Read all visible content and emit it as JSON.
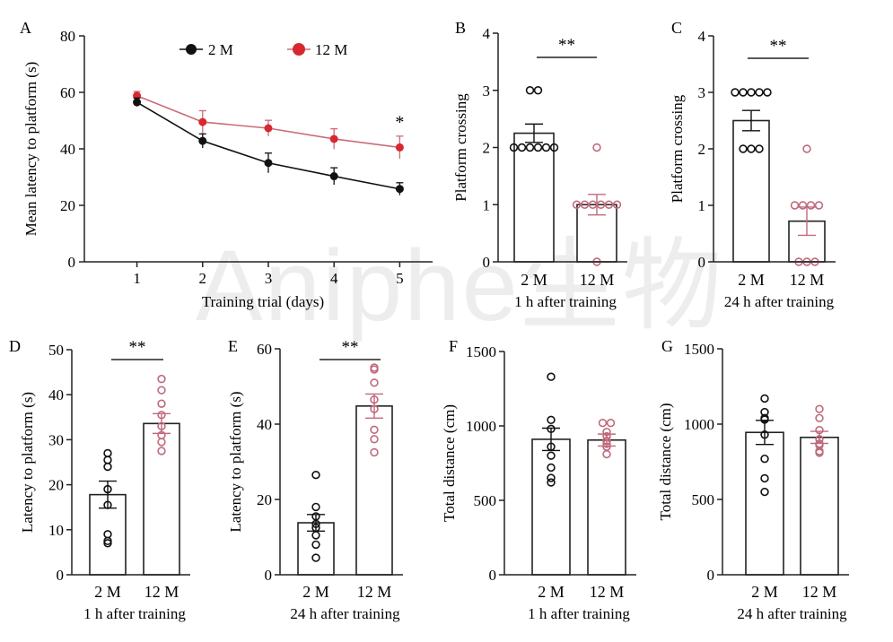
{
  "watermark": "Aniphe生物",
  "colors": {
    "dark": "#111111",
    "red": "#d8282f",
    "red_line": "#c96b7a",
    "pink_point": "#c06a7d",
    "axis": "#222222"
  },
  "chart_data": [
    {
      "panel": "A",
      "type": "line",
      "ylabel": "Mean latency to platform (s)",
      "xlabel": "Training  trial (days)",
      "xlim": [
        0.2,
        5.5
      ],
      "ylim": [
        0,
        80
      ],
      "yticks": [
        0,
        20,
        40,
        60,
        80
      ],
      "xticks": [
        1,
        2,
        3,
        4,
        5
      ],
      "legend_position": "top",
      "series": [
        {
          "name": "2 M",
          "color": "#111111",
          "x": [
            1,
            2,
            3,
            4,
            5
          ],
          "y": [
            56.5,
            42.8,
            35,
            30.3,
            25.8
          ],
          "err": [
            1.5,
            2.5,
            3.5,
            3,
            2.2
          ]
        },
        {
          "name": "12 M",
          "color": "#d8282f",
          "x": [
            1,
            2,
            3,
            4,
            5
          ],
          "y": [
            58.8,
            49.5,
            47.3,
            43.5,
            40.5
          ],
          "err": [
            1.5,
            4,
            2.8,
            3.6,
            4
          ]
        }
      ],
      "annotations": [
        {
          "text": "*",
          "x": 5,
          "y": 47.5
        }
      ]
    },
    {
      "panel": "B",
      "type": "bar",
      "ylabel": "Platform crossing",
      "subtitle": "1 h after training",
      "ylim": [
        0,
        4
      ],
      "yticks": [
        0,
        1,
        2,
        3,
        4
      ],
      "significance": "**",
      "categories": [
        "2 M",
        "12 M"
      ],
      "values": [
        2.25,
        1.0
      ],
      "errors": [
        0.16,
        0.18
      ],
      "points": [
        [
          3,
          3,
          2,
          2,
          2,
          2,
          2,
          2
        ],
        [
          2,
          1,
          1,
          1,
          1,
          1,
          1,
          0
        ]
      ]
    },
    {
      "panel": "C",
      "type": "bar",
      "ylabel": "Platform crossing",
      "subtitle": "24 h after training",
      "ylim": [
        0,
        4
      ],
      "yticks": [
        0,
        1,
        2,
        3,
        4
      ],
      "significance": "**",
      "categories": [
        "2 M",
        "12 M"
      ],
      "values": [
        2.5,
        0.72
      ],
      "errors": [
        0.18,
        0.25
      ],
      "points": [
        [
          3,
          3,
          3,
          3,
          3,
          2,
          2,
          2
        ],
        [
          2,
          1,
          1,
          1,
          1,
          0,
          0,
          0
        ]
      ]
    },
    {
      "panel": "D",
      "type": "bar",
      "ylabel": "Latency to platform (s)",
      "subtitle": "1 h after training",
      "ylim": [
        0,
        50
      ],
      "yticks": [
        0,
        10,
        20,
        30,
        40,
        50
      ],
      "significance": "**",
      "categories": [
        "2 M",
        "12 M"
      ],
      "values": [
        17.8,
        33.6
      ],
      "errors": [
        3.0,
        2.2
      ],
      "points": [
        [
          27,
          25.5,
          24,
          19,
          15.5,
          9,
          7.5,
          7
        ],
        [
          43.5,
          41,
          38,
          35.5,
          33,
          31,
          29.5,
          27.5
        ]
      ]
    },
    {
      "panel": "E",
      "type": "bar",
      "ylabel": "Latency to platform (s)",
      "subtitle": "24 h after training",
      "ylim": [
        0,
        60
      ],
      "yticks": [
        0,
        20,
        40,
        60
      ],
      "significance": "**",
      "categories": [
        "2 M",
        "12 M"
      ],
      "values": [
        13.8,
        44.8
      ],
      "errors": [
        2.2,
        3.2
      ],
      "points": [
        [
          26.5,
          18,
          15.5,
          13.5,
          12.5,
          10.5,
          8,
          4.5
        ],
        [
          55,
          54.5,
          51,
          46.5,
          44,
          38.5,
          36,
          32.5
        ]
      ]
    },
    {
      "panel": "F",
      "type": "bar",
      "ylabel": "Total distance (cm)",
      "subtitle": "1 h after training",
      "ylim": [
        0,
        1500
      ],
      "yticks": [
        0,
        500,
        1000,
        1500
      ],
      "categories": [
        "2 M",
        "12 M"
      ],
      "values": [
        910,
        905
      ],
      "errors": [
        75,
        40
      ],
      "points": [
        [
          1330,
          1040,
          980,
          860,
          800,
          720,
          650,
          620
        ],
        [
          1020,
          1020,
          960,
          930,
          900,
          880,
          860,
          810
        ]
      ]
    },
    {
      "panel": "G",
      "type": "bar",
      "ylabel": "Total distance (cm)",
      "subtitle": "24 h after training",
      "ylim": [
        0,
        1500
      ],
      "yticks": [
        0,
        500,
        1000,
        1500
      ],
      "categories": [
        "2 M",
        "12 M"
      ],
      "values": [
        945,
        912
      ],
      "errors": [
        80,
        40
      ],
      "points": [
        [
          1170,
          1080,
          1040,
          1030,
          930,
          770,
          640,
          550
        ],
        [
          1100,
          1040,
          960,
          900,
          870,
          860,
          820,
          810
        ]
      ]
    }
  ]
}
